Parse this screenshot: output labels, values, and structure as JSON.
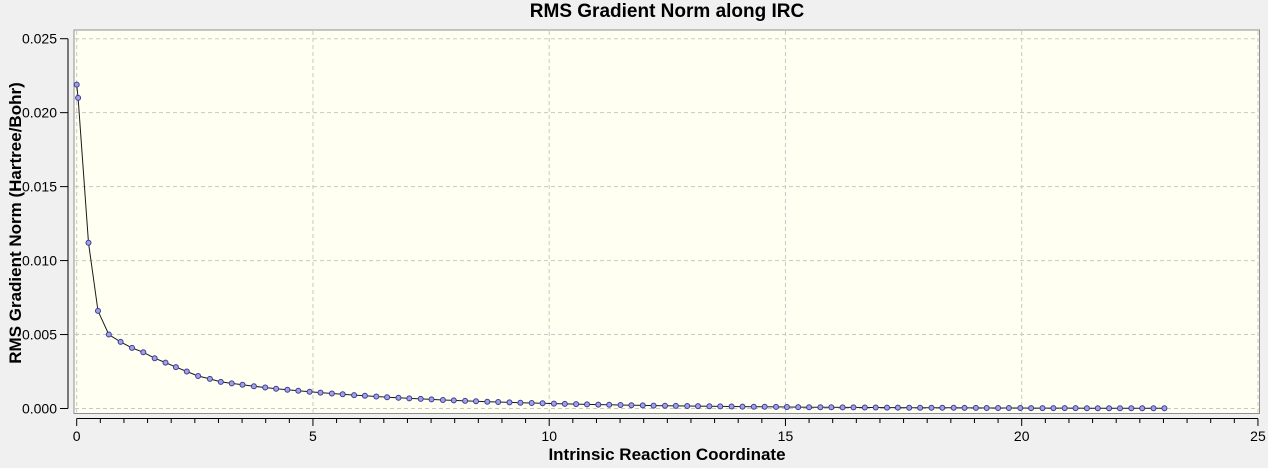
{
  "chart_data": {
    "type": "line",
    "title": "RMS Gradient Norm along IRC",
    "xlabel": "Intrinsic Reaction Coordinate",
    "ylabel": "RMS Gradient Norm (Hartree/Bohr)",
    "xlim": [
      0,
      25
    ],
    "ylim": [
      0,
      0.025
    ],
    "x_ticks": [
      0,
      5,
      10,
      15,
      20,
      25
    ],
    "x_tick_labels": [
      "0",
      "5",
      "10",
      "15",
      "20",
      "25"
    ],
    "x_minor_tick_step": 0.5,
    "y_ticks": [
      0,
      0.005,
      0.01,
      0.015,
      0.02,
      0.025
    ],
    "y_tick_labels": [
      "0.000",
      "0.005",
      "0.010",
      "0.015",
      "0.020",
      "0.025"
    ],
    "grid": "dashed major gridlines, both axes",
    "legend": "none",
    "marker": "circle",
    "series": [
      {
        "name": "RMS Gradient Norm",
        "x": [
          0,
          0.03,
          0.25,
          0.45,
          0.68,
          0.93,
          1.17,
          1.41,
          1.65,
          1.88,
          2.1,
          2.33,
          2.57,
          2.82,
          3.05,
          3.28,
          3.51,
          3.75,
          3.99,
          4.22,
          4.46,
          4.69,
          4.93,
          5.16,
          5.4,
          5.63,
          5.87,
          6.1,
          6.34,
          6.57,
          6.81,
          7.04,
          7.28,
          7.51,
          7.75,
          7.98,
          8.22,
          8.45,
          8.69,
          8.92,
          9.16,
          9.39,
          9.63,
          9.86,
          10.1,
          10.33,
          10.57,
          10.8,
          11.04,
          11.27,
          11.51,
          11.74,
          11.98,
          12.21,
          12.45,
          12.68,
          12.92,
          13.15,
          13.39,
          13.62,
          13.86,
          14.09,
          14.33,
          14.56,
          14.8,
          15.03,
          15.27,
          15.5,
          15.74,
          15.97,
          16.21,
          16.44,
          16.68,
          16.91,
          17.15,
          17.38,
          17.62,
          17.85,
          18.09,
          18.32,
          18.56,
          18.79,
          19.03,
          19.26,
          19.5,
          19.73,
          19.97,
          20.2,
          20.44,
          20.67,
          20.91,
          21.14,
          21.38,
          21.61,
          21.85,
          22.08,
          22.32,
          22.55,
          22.79,
          23.02
        ],
        "y": [
          0.0219,
          0.021,
          0.0112,
          0.0066,
          0.005,
          0.0045,
          0.0041,
          0.0038,
          0.0034,
          0.0031,
          0.0028,
          0.0025,
          0.0022,
          0.002,
          0.0018,
          0.0017,
          0.0016,
          0.0015,
          0.001418,
          0.001341,
          0.001268,
          0.001199,
          0.001133,
          0.001072,
          0.001013,
          0.000958,
          0.000906,
          0.000856,
          0.00081,
          0.000766,
          0.000724,
          0.000684,
          0.000647,
          0.000612,
          0.000578,
          0.000547,
          0.000517,
          0.000489,
          0.000462,
          0.000437,
          0.000413,
          0.000391,
          0.000369,
          0.000349,
          0.00033,
          0.000312,
          0.000295,
          0.000279,
          0.000264,
          0.00025,
          0.000236,
          0.000223,
          0.000211,
          0.000199,
          0.000189,
          0.000178,
          0.000169,
          0.000159,
          0.000151,
          0.000143,
          0.000135,
          0.000128,
          0.000121,
          0.000114,
          0.000108,
          0.000102,
          9.6e-05,
          9.1e-05,
          8.6e-05,
          8.1e-05,
          7.7e-05,
          7.3e-05,
          6.9e-05,
          6.5e-05,
          6.1e-05,
          5.8e-05,
          5.5e-05,
          5.2e-05,
          4.9e-05,
          4.6e-05,
          4.4e-05,
          4.1e-05,
          3.9e-05,
          3.7e-05,
          3.5e-05,
          3.3e-05,
          3.1e-05,
          3e-05,
          2.8e-05,
          2.6e-05,
          2.5e-05,
          2.4e-05,
          2.2e-05,
          2.1e-05,
          2e-05,
          1.9e-05,
          1.8e-05,
          1.7e-05,
          1.6e-05,
          1.5e-05
        ]
      }
    ]
  },
  "colors": {
    "page_bg": "#f0f0f0",
    "plot_bg": "#fffff2",
    "plot_frame": "#8f8f8f",
    "grid": "#c8c8c8",
    "axis": "#000000",
    "series_line": "#1a1a1a",
    "marker_fill": "#a2a2e0",
    "marker_stroke": "#3b3b9a",
    "text": "#000000"
  }
}
